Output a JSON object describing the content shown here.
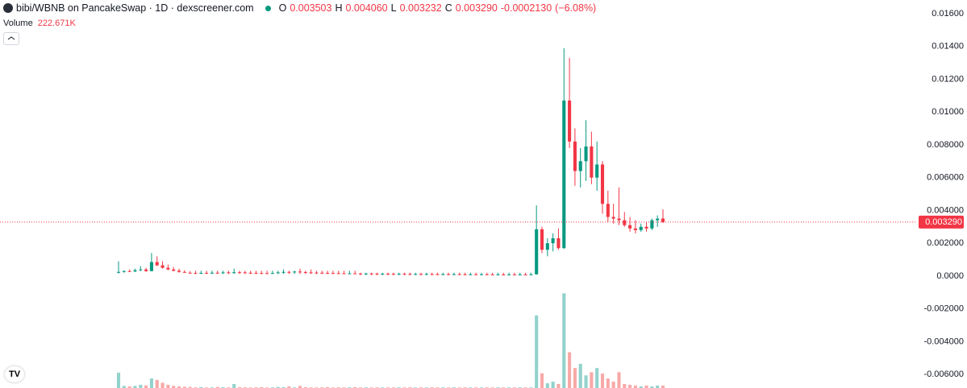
{
  "chart_data": {
    "type": "candlestick",
    "title": "bibi/WBNB on PancakeSwap · 1D · dexscreener.com",
    "legend": {
      "o": "O",
      "open": "0.003503",
      "h": "H",
      "high": "0.004060",
      "l": "L",
      "low": "0.003232",
      "c": "C",
      "close": "0.003290",
      "change": "-0.0002130",
      "change_pct": "(−6.08%)"
    },
    "volume_label": "Volume",
    "volume_value": "222.671K",
    "up_color": "#089981",
    "down_color": "#f23645",
    "volume_up_color": "#92d2cc",
    "volume_down_color": "#f7a9a7",
    "ylim": [
      -0.00683,
      0.01683
    ],
    "yticks": [
      {
        "value": -0.006,
        "label": "-0.006000"
      },
      {
        "value": -0.004,
        "label": "-0.004000"
      },
      {
        "value": -0.002,
        "label": "-0.002000"
      },
      {
        "value": 0,
        "label": "0.0000"
      },
      {
        "value": 0.002,
        "label": "0.002000"
      },
      {
        "value": 0.004,
        "label": "0.004000"
      },
      {
        "value": 0.006,
        "label": "0.006000"
      },
      {
        "value": 0.008,
        "label": "0.008000"
      },
      {
        "value": 0.01,
        "label": "0.01000"
      },
      {
        "value": 0.012,
        "label": "0.01200"
      },
      {
        "value": 0.014,
        "label": "0.01400"
      },
      {
        "value": 0.016,
        "label": "0.01600"
      }
    ],
    "last_price": {
      "value": 0.00329,
      "label": "0.003290"
    },
    "volume_ylim": [
      0,
      9100000
    ],
    "open": [
      0.0002,
      0.00025,
      0.0003,
      0.00028,
      0.00035,
      0.0004,
      0.0003,
      0.00085,
      0.00065,
      0.0005,
      0.0004,
      0.00032,
      0.00025,
      0.0002,
      0.00018,
      0.00017,
      0.00019,
      0.00018,
      0.0002,
      0.00019,
      0.00022,
      0.00021,
      0.00023,
      0.00022,
      0.0002,
      0.00019,
      0.00018,
      0.00017,
      0.00016,
      0.00018,
      0.00022,
      0.00025,
      0.00023,
      0.00027,
      0.00024,
      0.00022,
      0.00021,
      0.0002,
      0.00019,
      0.00018,
      0.00017,
      0.00016,
      0.00015,
      0.00016,
      0.00015,
      0.00014,
      0.00015,
      0.00014,
      0.00013,
      0.00014,
      0.00013,
      0.00012,
      0.00013,
      0.00012,
      0.00011,
      0.00012,
      0.00011,
      0.00012,
      0.00011,
      0.0001,
      0.00011,
      0.0001,
      0.00011,
      0.0001,
      9e-05,
      0.0001,
      9e-05,
      0.0001,
      9e-05,
      8e-05,
      9e-05,
      8e-05,
      9e-05,
      8e-05,
      9e-05,
      8e-05,
      0.0001,
      0.00285,
      0.0016,
      0.002,
      0.0023,
      0.0017,
      0.0107,
      0.0082,
      0.0064,
      0.007,
      0.0079,
      0.006,
      0.0068,
      0.0044,
      0.0036,
      0.0035,
      0.0034,
      0.0031,
      0.0029,
      0.0028,
      0.003,
      0.0029,
      0.0034,
      0.003503
    ],
    "high": [
      0.0009,
      0.00035,
      0.0004,
      0.00045,
      0.0006,
      0.0005,
      0.0014,
      0.0012,
      0.0009,
      0.0007,
      0.00055,
      0.00045,
      0.00035,
      0.0003,
      0.00032,
      0.00032,
      0.00032,
      0.00032,
      0.00032,
      0.00032,
      0.00032,
      0.00045,
      0.00032,
      0.00032,
      0.00032,
      0.00032,
      0.00032,
      0.00032,
      0.00032,
      0.00032,
      0.0004,
      0.00032,
      0.00032,
      0.00045,
      0.00032,
      0.0004,
      0.00032,
      0.00032,
      0.00032,
      0.00032,
      0.00032,
      0.00032,
      0.00032,
      0.00032,
      0.0002,
      0.0002,
      0.0002,
      0.0002,
      0.0002,
      0.0002,
      0.0002,
      0.0002,
      0.0002,
      0.0002,
      0.0002,
      0.0002,
      0.0002,
      0.0002,
      0.0002,
      0.0002,
      0.0002,
      0.0002,
      0.0002,
      0.0002,
      0.0002,
      0.0002,
      0.0002,
      0.0002,
      0.0002,
      0.0002,
      0.0002,
      0.0002,
      0.0002,
      0.0002,
      0.0002,
      0.0002,
      0.0043,
      0.003,
      0.0023,
      0.0026,
      0.0029,
      0.0139,
      0.0133,
      0.009,
      0.0078,
      0.0095,
      0.0088,
      0.0082,
      0.007,
      0.0052,
      0.0044,
      0.0054,
      0.0039,
      0.0036,
      0.0034,
      0.0032,
      0.0033,
      0.0035,
      0.0037,
      0.00406
    ],
    "low": [
      0.00015,
      0.0002,
      0.00025,
      0.00024,
      0.0003,
      0.00025,
      0.00028,
      0.0006,
      0.00045,
      0.00035,
      0.00028,
      0.0002,
      0.00018,
      0.00015,
      0.00012,
      0.00012,
      0.00012,
      0.00012,
      0.00012,
      0.00012,
      0.00012,
      0.00012,
      0.00012,
      0.00012,
      0.00012,
      0.00012,
      0.00012,
      0.00012,
      0.00012,
      0.00012,
      0.00012,
      0.00012,
      0.00012,
      0.00012,
      0.00012,
      0.00012,
      0.00012,
      0.00012,
      0.00012,
      0.00012,
      0.00012,
      0.00012,
      0.00012,
      0.00012,
      5e-05,
      5e-05,
      5e-05,
      5e-05,
      5e-05,
      5e-05,
      5e-05,
      5e-05,
      5e-05,
      5e-05,
      5e-05,
      5e-05,
      5e-05,
      5e-05,
      5e-05,
      5e-05,
      5e-05,
      5e-05,
      5e-05,
      5e-05,
      5e-05,
      5e-05,
      5e-05,
      5e-05,
      5e-05,
      5e-05,
      5e-05,
      5e-05,
      5e-05,
      5e-05,
      5e-05,
      5e-05,
      0.0001,
      0.0014,
      0.0012,
      0.0015,
      0.0016,
      0.00165,
      0.0078,
      0.0055,
      0.0054,
      0.0058,
      0.0056,
      0.0052,
      0.0038,
      0.0033,
      0.0032,
      0.0031,
      0.003,
      0.0027,
      0.0026,
      0.0027,
      0.0027,
      0.0028,
      0.003,
      0.003232
    ],
    "close": [
      0.00025,
      0.0003,
      0.00028,
      0.00035,
      0.0004,
      0.0003,
      0.00085,
      0.00065,
      0.0005,
      0.0004,
      0.00032,
      0.00025,
      0.0002,
      0.00018,
      0.00017,
      0.00019,
      0.00018,
      0.0002,
      0.00019,
      0.00022,
      0.00021,
      0.00023,
      0.00022,
      0.0002,
      0.00019,
      0.00018,
      0.00017,
      0.00016,
      0.00018,
      0.00022,
      0.00025,
      0.00023,
      0.00027,
      0.00024,
      0.00022,
      0.00021,
      0.0002,
      0.00019,
      0.00018,
      0.00017,
      0.00016,
      0.00015,
      0.00016,
      0.00015,
      0.00014,
      0.00015,
      0.00014,
      0.00013,
      0.00014,
      0.00013,
      0.00012,
      0.00013,
      0.00012,
      0.00011,
      0.00012,
      0.00011,
      0.00012,
      0.00011,
      0.0001,
      0.00011,
      0.0001,
      0.00011,
      0.0001,
      9e-05,
      0.0001,
      9e-05,
      0.0001,
      9e-05,
      8e-05,
      9e-05,
      8e-05,
      9e-05,
      8e-05,
      9e-05,
      8e-05,
      0.0001,
      0.00285,
      0.0016,
      0.002,
      0.0023,
      0.0017,
      0.0107,
      0.0082,
      0.0064,
      0.007,
      0.0079,
      0.006,
      0.0068,
      0.0044,
      0.0036,
      0.0035,
      0.0034,
      0.0031,
      0.0029,
      0.0028,
      0.003,
      0.0029,
      0.0034,
      0.0035,
      0.00329
    ],
    "volume": [
      1450000,
      200000,
      150000,
      200000,
      300000,
      250000,
      900000,
      760000,
      500000,
      300000,
      200000,
      150000,
      120000,
      100000,
      60000,
      80000,
      50000,
      60000,
      100000,
      80000,
      60000,
      380000,
      80000,
      60000,
      50000,
      60000,
      80000,
      50000,
      60000,
      100000,
      80000,
      150000,
      60000,
      200000,
      80000,
      60000,
      50000,
      60000,
      80000,
      50000,
      60000,
      50000,
      60000,
      80000,
      50000,
      60000,
      50000,
      60000,
      50000,
      60000,
      50000,
      60000,
      50000,
      60000,
      50000,
      60000,
      50000,
      60000,
      50000,
      60000,
      50000,
      60000,
      50000,
      60000,
      50000,
      60000,
      50000,
      60000,
      50000,
      60000,
      50000,
      60000,
      50000,
      60000,
      50000,
      60000,
      6900000,
      1400000,
      450000,
      600000,
      380000,
      9000000,
      3400000,
      1900000,
      2300000,
      1200000,
      1500000,
      1900000,
      1370000,
      900000,
      600000,
      1500000,
      380000,
      300000,
      230000,
      150000,
      230000,
      150000,
      230000,
      222671
    ]
  }
}
